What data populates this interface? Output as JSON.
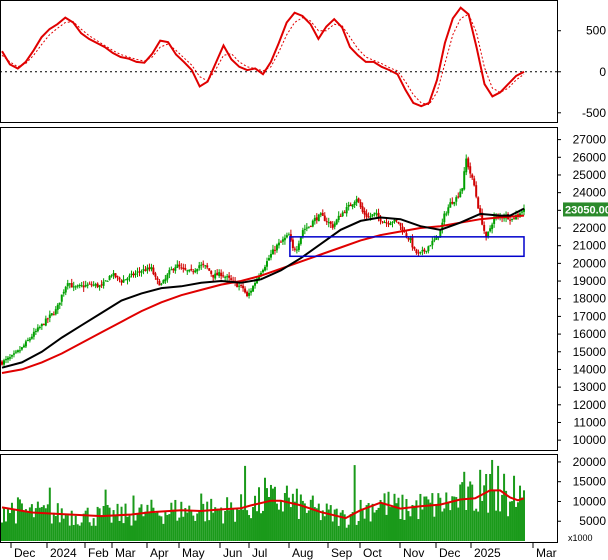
{
  "colors": {
    "candle_up": "#00a000",
    "candle_down": "#d00000",
    "ma_slow": "#e00000",
    "ma_fast": "#000000",
    "box": "#0000cc",
    "volume": "#1a9a1a",
    "volume_ma": "#e00000",
    "last_label_bg": "#2b8a2b"
  },
  "chart_data": [
    {
      "type": "line",
      "panel": "oscillator",
      "ylim": [
        -600,
        850
      ],
      "yticks": [
        "500",
        "0",
        "-500"
      ],
      "ytick_values": [
        500,
        0,
        -500
      ],
      "zero_line": "dotted",
      "series": [
        {
          "values": [
            250,
            90,
            40,
            120,
            260,
            420,
            520,
            580,
            660,
            600,
            470,
            400,
            350,
            300,
            230,
            180,
            160,
            120,
            110,
            220,
            380,
            360,
            210,
            120,
            20,
            -180,
            -120,
            100,
            320,
            150,
            60,
            20,
            40,
            -30,
            120,
            350,
            600,
            720,
            680,
            580,
            400,
            550,
            640,
            540,
            300,
            200,
            120,
            120,
            60,
            20,
            -30,
            -220,
            -380,
            -420,
            -380,
            -100,
            350,
            650,
            780,
            700,
            300,
            -150,
            -300,
            -250,
            -150,
            -50,
            0
          ]
        },
        {
          "values": [
            200,
            120,
            60,
            100,
            200,
            330,
            450,
            530,
            600,
            610,
            520,
            440,
            380,
            320,
            260,
            210,
            180,
            150,
            130,
            180,
            300,
            340,
            260,
            170,
            80,
            -60,
            -110,
            20,
            200,
            220,
            120,
            60,
            40,
            10,
            60,
            240,
            450,
            600,
            660,
            620,
            500,
            500,
            580,
            560,
            420,
            280,
            180,
            140,
            100,
            50,
            10,
            -120,
            -280,
            -380,
            -400,
            -250,
            100,
            450,
            650,
            700,
            480,
            50,
            -200,
            -250,
            -200,
            -100,
            -30
          ]
        }
      ]
    },
    {
      "type": "candlestick",
      "panel": "price",
      "ylim": [
        9500,
        27600
      ],
      "yticks": [
        "27000",
        "26000",
        "25000",
        "24000",
        "23000",
        "22000",
        "21000",
        "20000",
        "19000",
        "18000",
        "17000",
        "16000",
        "15000",
        "14000",
        "13000",
        "12000",
        "11000",
        "10000"
      ],
      "ytick_values": [
        27000,
        26000,
        25000,
        24000,
        23000,
        22000,
        21000,
        20000,
        19000,
        18000,
        17000,
        16000,
        15000,
        14000,
        13000,
        12000,
        11000,
        10000
      ],
      "last_price": 23050,
      "last_price_label": "23050.00",
      "close_anchors": [
        [
          0,
          14400
        ],
        [
          10,
          14700
        ],
        [
          20,
          15200
        ],
        [
          30,
          15900
        ],
        [
          40,
          16500
        ],
        [
          48,
          17000
        ],
        [
          55,
          17400
        ],
        [
          60,
          18200
        ],
        [
          66,
          19000
        ],
        [
          72,
          18600
        ],
        [
          80,
          18700
        ],
        [
          90,
          18800
        ],
        [
          100,
          18700
        ],
        [
          110,
          19400
        ],
        [
          120,
          19000
        ],
        [
          130,
          19300
        ],
        [
          140,
          19600
        ],
        [
          150,
          19700
        ],
        [
          155,
          19000
        ],
        [
          160,
          18800
        ],
        [
          163,
          19000
        ],
        [
          168,
          19500
        ],
        [
          175,
          19900
        ],
        [
          182,
          19600
        ],
        [
          190,
          19500
        ],
        [
          198,
          19900
        ],
        [
          205,
          19800
        ],
        [
          212,
          19300
        ],
        [
          220,
          19400
        ],
        [
          228,
          19100
        ],
        [
          235,
          18800
        ],
        [
          242,
          18600
        ],
        [
          246,
          18100
        ],
        [
          252,
          18700
        ],
        [
          258,
          19400
        ],
        [
          264,
          19900
        ],
        [
          270,
          20500
        ],
        [
          276,
          21000
        ],
        [
          282,
          21300
        ],
        [
          288,
          21600
        ],
        [
          292,
          20800
        ],
        [
          296,
          20900
        ],
        [
          302,
          21900
        ],
        [
          308,
          22100
        ],
        [
          314,
          22500
        ],
        [
          320,
          22700
        ],
        [
          326,
          22400
        ],
        [
          332,
          22100
        ],
        [
          338,
          22600
        ],
        [
          344,
          23000
        ],
        [
          350,
          23300
        ],
        [
          356,
          23700
        ],
        [
          362,
          22900
        ],
        [
          368,
          22600
        ],
        [
          374,
          22800
        ],
        [
          380,
          22500
        ],
        [
          386,
          22300
        ],
        [
          392,
          22400
        ],
        [
          398,
          22300
        ],
        [
          404,
          21700
        ],
        [
          410,
          21300
        ],
        [
          414,
          20700
        ],
        [
          418,
          20500
        ],
        [
          424,
          20700
        ],
        [
          430,
          21100
        ],
        [
          436,
          21400
        ],
        [
          440,
          21800
        ],
        [
          444,
          22700
        ],
        [
          450,
          23400
        ],
        [
          456,
          23700
        ],
        [
          462,
          24300
        ],
        [
          466,
          25900
        ],
        [
          470,
          25100
        ],
        [
          474,
          24400
        ],
        [
          478,
          23200
        ],
        [
          482,
          22300
        ],
        [
          486,
          21400
        ],
        [
          490,
          22000
        ],
        [
          494,
          22600
        ],
        [
          500,
          22600
        ],
        [
          506,
          22700
        ],
        [
          512,
          22500
        ],
        [
          518,
          22800
        ],
        [
          524,
          23050
        ]
      ],
      "ma_fast_pts": [
        [
          0,
          14100
        ],
        [
          20,
          14400
        ],
        [
          40,
          15000
        ],
        [
          60,
          15800
        ],
        [
          80,
          16500
        ],
        [
          100,
          17200
        ],
        [
          120,
          17900
        ],
        [
          140,
          18300
        ],
        [
          160,
          18600
        ],
        [
          180,
          18700
        ],
        [
          200,
          18900
        ],
        [
          220,
          19000
        ],
        [
          240,
          18900
        ],
        [
          260,
          19100
        ],
        [
          280,
          19600
        ],
        [
          300,
          20300
        ],
        [
          320,
          21100
        ],
        [
          340,
          21900
        ],
        [
          360,
          22400
        ],
        [
          380,
          22600
        ],
        [
          400,
          22500
        ],
        [
          420,
          22100
        ],
        [
          440,
          21900
        ],
        [
          460,
          22300
        ],
        [
          480,
          22800
        ],
        [
          500,
          22700
        ],
        [
          510,
          22700
        ],
        [
          524,
          23100
        ]
      ],
      "ma_slow_pts": [
        [
          0,
          13800
        ],
        [
          20,
          14000
        ],
        [
          40,
          14400
        ],
        [
          60,
          14900
        ],
        [
          80,
          15500
        ],
        [
          100,
          16100
        ],
        [
          120,
          16700
        ],
        [
          140,
          17300
        ],
        [
          160,
          17800
        ],
        [
          180,
          18200
        ],
        [
          200,
          18500
        ],
        [
          220,
          18800
        ],
        [
          240,
          19000
        ],
        [
          260,
          19300
        ],
        [
          280,
          19700
        ],
        [
          300,
          20100
        ],
        [
          320,
          20500
        ],
        [
          340,
          20900
        ],
        [
          360,
          21300
        ],
        [
          380,
          21600
        ],
        [
          400,
          21800
        ],
        [
          420,
          22000
        ],
        [
          440,
          22100
        ],
        [
          460,
          22300
        ],
        [
          480,
          22500
        ],
        [
          500,
          22600
        ],
        [
          524,
          22700
        ]
      ],
      "support_box": [
        20400,
        21500
      ],
      "support_box_range": [
        289,
        524
      ]
    },
    {
      "type": "bar",
      "panel": "volume",
      "ylim": [
        0,
        21500
      ],
      "yticks": [
        "20000",
        "15000",
        "10000",
        "5000"
      ],
      "ytick_values": [
        20000,
        15000,
        10000,
        5000
      ],
      "unit_label": "x1000",
      "volume_ma_pts": [
        [
          0,
          8500
        ],
        [
          30,
          7200
        ],
        [
          60,
          6800
        ],
        [
          100,
          6300
        ],
        [
          130,
          6700
        ],
        [
          150,
          7300
        ],
        [
          180,
          7800
        ],
        [
          200,
          7600
        ],
        [
          220,
          8000
        ],
        [
          240,
          8300
        ],
        [
          250,
          9000
        ],
        [
          270,
          10200
        ],
        [
          280,
          10200
        ],
        [
          300,
          9000
        ],
        [
          320,
          7300
        ],
        [
          345,
          5800
        ],
        [
          360,
          7800
        ],
        [
          380,
          9700
        ],
        [
          400,
          8200
        ],
        [
          420,
          8800
        ],
        [
          440,
          9200
        ],
        [
          460,
          10500
        ],
        [
          475,
          10800
        ],
        [
          490,
          12800
        ],
        [
          500,
          12800
        ],
        [
          510,
          11000
        ],
        [
          518,
          10300
        ],
        [
          524,
          10800
        ]
      ],
      "spikes": [
        [
          48,
          13500
        ],
        [
          105,
          13000
        ],
        [
          133,
          11500
        ],
        [
          200,
          12000
        ],
        [
          245,
          19000
        ],
        [
          265,
          16000
        ],
        [
          287,
          14000
        ],
        [
          355,
          19200
        ],
        [
          465,
          17500
        ],
        [
          480,
          18000
        ],
        [
          492,
          20500
        ],
        [
          498,
          19000
        ],
        [
          505,
          17000
        ],
        [
          514,
          16500
        ],
        [
          520,
          14000
        ],
        [
          523,
          11000
        ]
      ]
    }
  ],
  "x_axis": {
    "labels": [
      "Dec",
      "2024",
      "Feb",
      "Mar",
      "Apr",
      "May",
      "Jun",
      "Jul",
      "Aug",
      "Sep",
      "Oct",
      "Nov",
      "Dec",
      "2025",
      "Mar"
    ]
  }
}
